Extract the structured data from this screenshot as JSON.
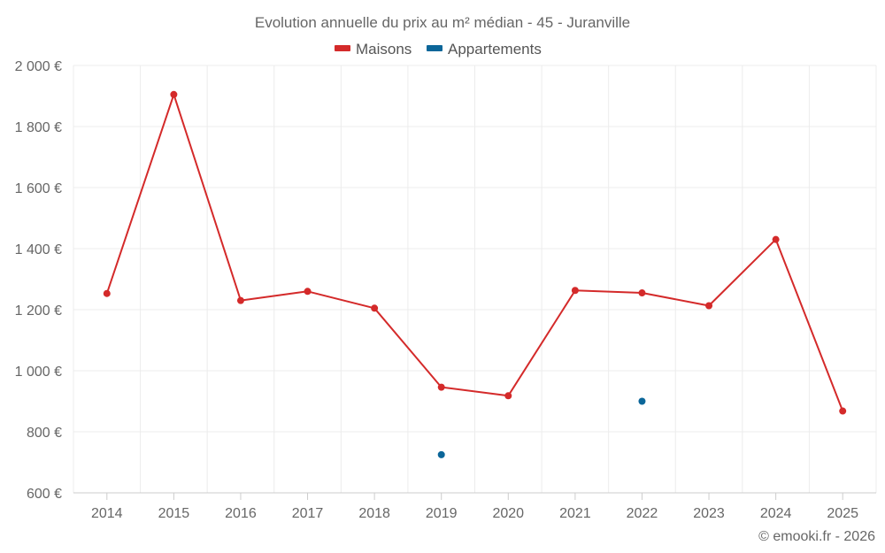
{
  "chart_data": {
    "type": "line",
    "title": "Evolution annuelle du prix au m² médian - 45 - Juranville",
    "categories": [
      "2014",
      "2015",
      "2016",
      "2017",
      "2018",
      "2019",
      "2020",
      "2021",
      "2022",
      "2023",
      "2024",
      "2025"
    ],
    "series": [
      {
        "name": "Maisons",
        "color": "#d42a2a",
        "values": [
          1253,
          1905,
          1230,
          1260,
          1205,
          946,
          918,
          1263,
          1255,
          1213,
          1430,
          868
        ],
        "connected": true
      },
      {
        "name": "Appartements",
        "color": "#0b6699",
        "values": [
          null,
          null,
          null,
          null,
          null,
          725,
          null,
          null,
          900,
          null,
          null,
          null
        ],
        "connected": false
      }
    ],
    "ylim": [
      600,
      2000
    ],
    "yticks": [
      600,
      800,
      1000,
      1200,
      1400,
      1600,
      1800,
      2000
    ],
    "ytick_labels": [
      "600 €",
      "800 €",
      "1 000 €",
      "1 200 €",
      "1 400 €",
      "1 600 €",
      "1 800 €",
      "2 000 €"
    ],
    "legend_position": "top-center",
    "grid": true,
    "credit": "© emooki.fr - 2026"
  }
}
